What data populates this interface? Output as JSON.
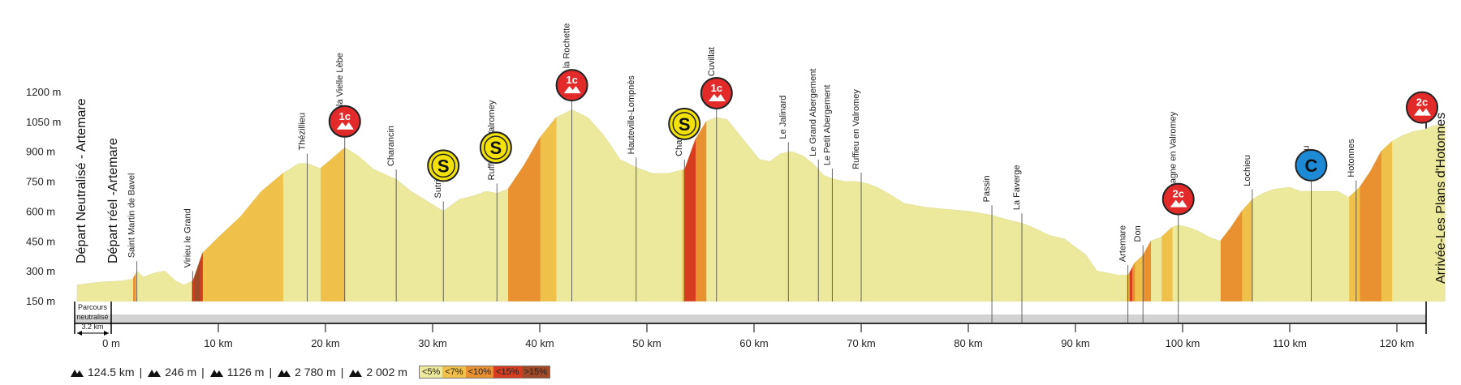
{
  "chart_data": {
    "type": "area",
    "title": "",
    "xlabel": "",
    "ylabel": "",
    "xlim": [
      -3.2,
      124.5
    ],
    "ylim": [
      150,
      1200
    ],
    "y_ticks": [
      "1200 m",
      "1050 m",
      "900 m",
      "750 m",
      "600 m",
      "450 m",
      "300 m",
      "150 m"
    ],
    "y_tick_values": [
      1200,
      1050,
      900,
      750,
      600,
      450,
      300,
      150
    ],
    "x_ticks": [
      "0 m",
      "10 km",
      "20 km",
      "30 km",
      "40 km",
      "50 km",
      "60 km",
      "70 km",
      "80 km",
      "90 km",
      "100 km",
      "110 km",
      "120 km"
    ],
    "x_tick_values": [
      0,
      10,
      20,
      30,
      40,
      50,
      60,
      70,
      80,
      90,
      100,
      110,
      120
    ],
    "profile": {
      "x": [
        -3.2,
        -1,
        1,
        2,
        2.4,
        3,
        4,
        5,
        6,
        6.8,
        7.6,
        8.5,
        10,
        12,
        14,
        16,
        17.5,
        18.3,
        19.5,
        20.5,
        21.8,
        23,
        24.5,
        26.6,
        28,
        29.5,
        31,
        32.5,
        34,
        35,
        36,
        37,
        38.5,
        40,
        41.5,
        43,
        44.5,
        46,
        47.5,
        49,
        50.5,
        52,
        53.5,
        54.5,
        55.5,
        56.5,
        57.5,
        59,
        60.5,
        61.5,
        62.5,
        63.5,
        64.5,
        65.5,
        66.5,
        67.5,
        68.5,
        69.5,
        70.5,
        71.5,
        72.5,
        74,
        76,
        78,
        80,
        82.2,
        83.5,
        85,
        86,
        87.5,
        89,
        90,
        91,
        92,
        93,
        94,
        94.9,
        95.5,
        96.3,
        97,
        98,
        99,
        99.6,
        100.5,
        101.5,
        102.5,
        103.5,
        104.5,
        105.5,
        106.5,
        107.5,
        108.5,
        110,
        111,
        112.5,
        113.5,
        114.5,
        115.5,
        116.5,
        117.5,
        118.5,
        119.5,
        120.5,
        121.5,
        122.5,
        123.5,
        124.5
      ],
      "y": [
        230,
        245,
        250,
        260,
        300,
        270,
        290,
        300,
        250,
        230,
        250,
        390,
        470,
        570,
        700,
        790,
        840,
        840,
        815,
        860,
        920,
        880,
        810,
        760,
        700,
        650,
        600,
        660,
        680,
        700,
        690,
        710,
        830,
        970,
        1070,
        1110,
        1070,
        980,
        860,
        820,
        790,
        790,
        810,
        960,
        1050,
        1070,
        1060,
        960,
        860,
        850,
        890,
        900,
        880,
        840,
        780,
        760,
        750,
        750,
        740,
        720,
        690,
        640,
        620,
        610,
        600,
        580,
        560,
        540,
        520,
        480,
        460,
        420,
        380,
        300,
        290,
        280,
        280,
        340,
        380,
        450,
        470,
        520,
        530,
        520,
        500,
        470,
        450,
        520,
        600,
        660,
        690,
        710,
        720,
        700,
        700,
        700,
        700,
        670,
        720,
        800,
        900,
        950,
        980,
        1000,
        1010,
        1030,
        1030
      ]
    },
    "gradient_legend": [
      "<5%",
      "<7%",
      "<10%",
      "<15%",
      ">15%"
    ],
    "gradient_colors": [
      "#ece99c",
      "#efc04a",
      "#e99030",
      "#d63c20",
      "#a04a28"
    ],
    "places": [
      {
        "km": 2.4,
        "label": "Saint Martin de Bavel"
      },
      {
        "km": 7.6,
        "label": "Virieu le Grand"
      },
      {
        "km": 18.3,
        "label": "Thézillieu"
      },
      {
        "km": 21.8,
        "label": "Col de la Vielle Lèbe"
      },
      {
        "km": 26.6,
        "label": "Charancin"
      },
      {
        "km": 31.0,
        "label": "Sutrieu"
      },
      {
        "km": 36.0,
        "label": "Ruffieu en Valromey"
      },
      {
        "km": 43.0,
        "label": "Col de la Rochette"
      },
      {
        "km": 49.0,
        "label": "Hauteville-Lompnès"
      },
      {
        "km": 53.5,
        "label": "Champdor"
      },
      {
        "km": 56.5,
        "label": "Col de Cuvillat"
      },
      {
        "km": 63.2,
        "label": "Le Jalinard"
      },
      {
        "km": 66.0,
        "label": "Le Grand Abergement"
      },
      {
        "km": 67.3,
        "label": "Le Petit Abergement"
      },
      {
        "km": 70.0,
        "label": "Ruffieu en Valromey"
      },
      {
        "km": 82.2,
        "label": "Passin"
      },
      {
        "km": 85.0,
        "label": "La Faverge"
      },
      {
        "km": 94.9,
        "label": "Artemare"
      },
      {
        "km": 96.3,
        "label": "Don"
      },
      {
        "km": 99.6,
        "label": "Champagne en Valromey"
      },
      {
        "km": 106.5,
        "label": "Lochieu"
      },
      {
        "km": 112.0,
        "label": "Songieu"
      },
      {
        "km": 116.2,
        "label": "Hotonnes"
      }
    ],
    "markers": [
      {
        "km": 21.8,
        "cat": "1c",
        "type": "climb",
        "color": "#e32a2a"
      },
      {
        "km": 31.0,
        "cat": "S",
        "type": "sprint",
        "color": "#f2e20a"
      },
      {
        "km": 35.9,
        "cat": "S",
        "type": "sprint",
        "color": "#f2e20a"
      },
      {
        "km": 43.0,
        "cat": "1c",
        "type": "climb",
        "color": "#e32a2a"
      },
      {
        "km": 53.5,
        "cat": "S",
        "type": "sprint",
        "color": "#f2e20a"
      },
      {
        "km": 56.5,
        "cat": "1c",
        "type": "climb",
        "color": "#e32a2a"
      },
      {
        "km": 99.6,
        "cat": "2c",
        "type": "climb",
        "color": "#e32a2a"
      },
      {
        "km": 112.0,
        "cat": "C",
        "type": "col",
        "color": "#1e8ad6"
      },
      {
        "km": 124.5,
        "cat": "2c",
        "type": "climb",
        "color": "#e32a2a"
      }
    ],
    "start_neutral": "Départ Neutralisé - Artemare",
    "start_real": "Départ réel -Artemare",
    "finish": "Arrivée-Les Plans d'Hotonnes",
    "neutral_note": [
      "Parcours",
      "neutralisé",
      "3.2 km"
    ],
    "stats": [
      {
        "icon": "distance",
        "value": "124.5 km"
      },
      {
        "icon": "climb",
        "value": "246 m"
      },
      {
        "icon": "max",
        "value": "1126 m"
      },
      {
        "icon": "ascent",
        "value": "2 780 m"
      },
      {
        "icon": "descent",
        "value": "2 002 m"
      }
    ]
  }
}
